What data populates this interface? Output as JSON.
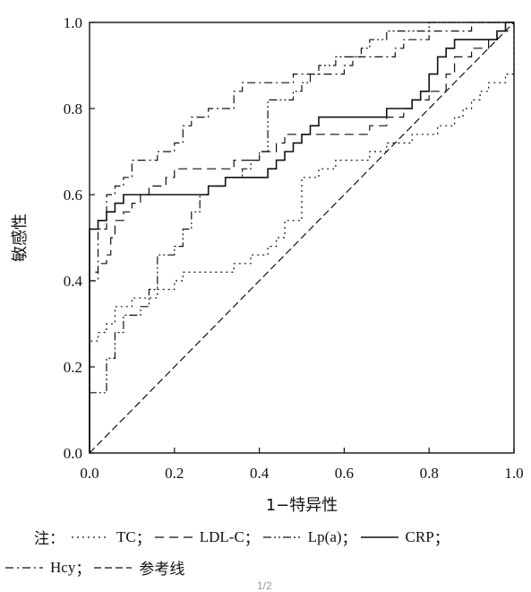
{
  "chart_data": {
    "type": "line",
    "title": "",
    "xlabel": "1−特异性",
    "ylabel": "敏感性",
    "xlim": [
      0,
      1
    ],
    "ylim": [
      0,
      1
    ],
    "x_ticks": [
      "0.0",
      "0.2",
      "0.4",
      "0.6",
      "0.8",
      "1.0"
    ],
    "y_ticks": [
      "0.0",
      "0.2",
      "0.4",
      "0.6",
      "0.8",
      "1.0"
    ],
    "legend_position": "bottom",
    "series": [
      {
        "name": "TC",
        "style": "dotted",
        "points": [
          [
            0,
            0
          ],
          [
            0,
            0.26
          ],
          [
            0.02,
            0.26
          ],
          [
            0.02,
            0.28
          ],
          [
            0.04,
            0.28
          ],
          [
            0.04,
            0.3
          ],
          [
            0.06,
            0.3
          ],
          [
            0.06,
            0.34
          ],
          [
            0.1,
            0.34
          ],
          [
            0.1,
            0.36
          ],
          [
            0.16,
            0.36
          ],
          [
            0.16,
            0.38
          ],
          [
            0.2,
            0.38
          ],
          [
            0.2,
            0.4
          ],
          [
            0.22,
            0.4
          ],
          [
            0.22,
            0.42
          ],
          [
            0.34,
            0.42
          ],
          [
            0.34,
            0.44
          ],
          [
            0.38,
            0.44
          ],
          [
            0.38,
            0.46
          ],
          [
            0.42,
            0.46
          ],
          [
            0.42,
            0.48
          ],
          [
            0.44,
            0.48
          ],
          [
            0.44,
            0.5
          ],
          [
            0.46,
            0.5
          ],
          [
            0.46,
            0.54
          ],
          [
            0.5,
            0.54
          ],
          [
            0.5,
            0.64
          ],
          [
            0.54,
            0.64
          ],
          [
            0.54,
            0.66
          ],
          [
            0.58,
            0.66
          ],
          [
            0.58,
            0.68
          ],
          [
            0.66,
            0.68
          ],
          [
            0.66,
            0.7
          ],
          [
            0.7,
            0.7
          ],
          [
            0.7,
            0.72
          ],
          [
            0.76,
            0.72
          ],
          [
            0.76,
            0.74
          ],
          [
            0.82,
            0.74
          ],
          [
            0.82,
            0.76
          ],
          [
            0.86,
            0.76
          ],
          [
            0.86,
            0.78
          ],
          [
            0.88,
            0.78
          ],
          [
            0.88,
            0.8
          ],
          [
            0.9,
            0.8
          ],
          [
            0.9,
            0.82
          ],
          [
            0.92,
            0.82
          ],
          [
            0.92,
            0.84
          ],
          [
            0.94,
            0.84
          ],
          [
            0.94,
            0.86
          ],
          [
            0.98,
            0.86
          ],
          [
            0.98,
            0.88
          ],
          [
            1,
            0.88
          ],
          [
            1,
            1
          ]
        ]
      },
      {
        "name": "LDL-C",
        "style": "dashed",
        "points": [
          [
            0,
            0
          ],
          [
            0,
            0.42
          ],
          [
            0.02,
            0.42
          ],
          [
            0.02,
            0.44
          ],
          [
            0.04,
            0.44
          ],
          [
            0.04,
            0.46
          ],
          [
            0.05,
            0.46
          ],
          [
            0.05,
            0.5
          ],
          [
            0.06,
            0.5
          ],
          [
            0.06,
            0.54
          ],
          [
            0.08,
            0.54
          ],
          [
            0.08,
            0.56
          ],
          [
            0.1,
            0.56
          ],
          [
            0.1,
            0.58
          ],
          [
            0.12,
            0.58
          ],
          [
            0.12,
            0.6
          ],
          [
            0.14,
            0.6
          ],
          [
            0.14,
            0.62
          ],
          [
            0.18,
            0.62
          ],
          [
            0.18,
            0.64
          ],
          [
            0.2,
            0.64
          ],
          [
            0.2,
            0.66
          ],
          [
            0.34,
            0.66
          ],
          [
            0.34,
            0.68
          ],
          [
            0.4,
            0.68
          ],
          [
            0.4,
            0.7
          ],
          [
            0.44,
            0.7
          ],
          [
            0.44,
            0.72
          ],
          [
            0.46,
            0.72
          ],
          [
            0.46,
            0.74
          ],
          [
            0.66,
            0.74
          ],
          [
            0.66,
            0.76
          ],
          [
            0.7,
            0.76
          ],
          [
            0.7,
            0.78
          ],
          [
            0.74,
            0.78
          ],
          [
            0.74,
            0.8
          ],
          [
            0.76,
            0.8
          ],
          [
            0.76,
            0.82
          ],
          [
            0.8,
            0.82
          ],
          [
            0.8,
            0.84
          ],
          [
            0.84,
            0.84
          ],
          [
            0.84,
            0.88
          ],
          [
            0.86,
            0.88
          ],
          [
            0.86,
            0.92
          ],
          [
            0.9,
            0.92
          ],
          [
            0.9,
            0.94
          ],
          [
            0.94,
            0.94
          ],
          [
            0.94,
            0.96
          ],
          [
            0.96,
            0.96
          ],
          [
            0.96,
            0.98
          ],
          [
            1,
            0.98
          ],
          [
            1,
            1
          ]
        ]
      },
      {
        "name": "Lp(a)",
        "style": "dash-dot-dot",
        "points": [
          [
            0,
            0
          ],
          [
            0,
            0.14
          ],
          [
            0.04,
            0.14
          ],
          [
            0.04,
            0.22
          ],
          [
            0.06,
            0.22
          ],
          [
            0.06,
            0.28
          ],
          [
            0.08,
            0.28
          ],
          [
            0.08,
            0.32
          ],
          [
            0.12,
            0.32
          ],
          [
            0.12,
            0.34
          ],
          [
            0.14,
            0.34
          ],
          [
            0.14,
            0.38
          ],
          [
            0.16,
            0.38
          ],
          [
            0.16,
            0.46
          ],
          [
            0.2,
            0.46
          ],
          [
            0.2,
            0.48
          ],
          [
            0.22,
            0.48
          ],
          [
            0.22,
            0.52
          ],
          [
            0.24,
            0.52
          ],
          [
            0.24,
            0.56
          ],
          [
            0.26,
            0.56
          ],
          [
            0.26,
            0.6
          ],
          [
            0.28,
            0.6
          ],
          [
            0.28,
            0.62
          ],
          [
            0.32,
            0.62
          ],
          [
            0.32,
            0.64
          ],
          [
            0.36,
            0.64
          ],
          [
            0.36,
            0.66
          ],
          [
            0.38,
            0.66
          ],
          [
            0.38,
            0.68
          ],
          [
            0.4,
            0.68
          ],
          [
            0.4,
            0.7
          ],
          [
            0.42,
            0.7
          ],
          [
            0.42,
            0.82
          ],
          [
            0.48,
            0.82
          ],
          [
            0.48,
            0.84
          ],
          [
            0.5,
            0.84
          ],
          [
            0.5,
            0.86
          ],
          [
            0.52,
            0.86
          ],
          [
            0.52,
            0.88
          ],
          [
            0.54,
            0.88
          ],
          [
            0.54,
            0.9
          ],
          [
            0.58,
            0.9
          ],
          [
            0.58,
            0.92
          ],
          [
            0.64,
            0.92
          ],
          [
            0.64,
            0.94
          ],
          [
            0.66,
            0.94
          ],
          [
            0.66,
            0.96
          ],
          [
            0.7,
            0.96
          ],
          [
            0.7,
            0.98
          ],
          [
            0.8,
            0.98
          ],
          [
            0.8,
            1.0
          ],
          [
            1,
            1
          ]
        ]
      },
      {
        "name": "CRP",
        "style": "solid",
        "points": [
          [
            0,
            0
          ],
          [
            0,
            0.52
          ],
          [
            0.02,
            0.52
          ],
          [
            0.02,
            0.54
          ],
          [
            0.04,
            0.54
          ],
          [
            0.04,
            0.56
          ],
          [
            0.06,
            0.56
          ],
          [
            0.06,
            0.58
          ],
          [
            0.08,
            0.58
          ],
          [
            0.08,
            0.6
          ],
          [
            0.28,
            0.6
          ],
          [
            0.28,
            0.62
          ],
          [
            0.32,
            0.62
          ],
          [
            0.32,
            0.64
          ],
          [
            0.42,
            0.64
          ],
          [
            0.42,
            0.66
          ],
          [
            0.44,
            0.66
          ],
          [
            0.44,
            0.68
          ],
          [
            0.46,
            0.68
          ],
          [
            0.46,
            0.7
          ],
          [
            0.48,
            0.7
          ],
          [
            0.48,
            0.72
          ],
          [
            0.5,
            0.72
          ],
          [
            0.5,
            0.74
          ],
          [
            0.52,
            0.74
          ],
          [
            0.52,
            0.76
          ],
          [
            0.54,
            0.76
          ],
          [
            0.54,
            0.78
          ],
          [
            0.7,
            0.78
          ],
          [
            0.7,
            0.8
          ],
          [
            0.76,
            0.8
          ],
          [
            0.76,
            0.82
          ],
          [
            0.78,
            0.82
          ],
          [
            0.78,
            0.84
          ],
          [
            0.8,
            0.84
          ],
          [
            0.8,
            0.88
          ],
          [
            0.82,
            0.88
          ],
          [
            0.82,
            0.92
          ],
          [
            0.84,
            0.92
          ],
          [
            0.84,
            0.94
          ],
          [
            0.86,
            0.94
          ],
          [
            0.86,
            0.96
          ],
          [
            0.96,
            0.96
          ],
          [
            0.96,
            0.98
          ],
          [
            0.98,
            0.98
          ],
          [
            0.98,
            1.0
          ],
          [
            1,
            1
          ]
        ]
      },
      {
        "name": "Hcy",
        "style": "dash-dot",
        "points": [
          [
            0,
            0
          ],
          [
            0,
            0.4
          ],
          [
            0.02,
            0.4
          ],
          [
            0.02,
            0.52
          ],
          [
            0.04,
            0.52
          ],
          [
            0.04,
            0.6
          ],
          [
            0.06,
            0.6
          ],
          [
            0.06,
            0.62
          ],
          [
            0.08,
            0.62
          ],
          [
            0.08,
            0.64
          ],
          [
            0.1,
            0.64
          ],
          [
            0.1,
            0.68
          ],
          [
            0.16,
            0.68
          ],
          [
            0.16,
            0.7
          ],
          [
            0.2,
            0.7
          ],
          [
            0.2,
            0.72
          ],
          [
            0.22,
            0.72
          ],
          [
            0.22,
            0.76
          ],
          [
            0.24,
            0.76
          ],
          [
            0.24,
            0.78
          ],
          [
            0.28,
            0.78
          ],
          [
            0.28,
            0.8
          ],
          [
            0.34,
            0.8
          ],
          [
            0.34,
            0.84
          ],
          [
            0.36,
            0.84
          ],
          [
            0.36,
            0.86
          ],
          [
            0.48,
            0.86
          ],
          [
            0.48,
            0.88
          ],
          [
            0.6,
            0.88
          ],
          [
            0.6,
            0.9
          ],
          [
            0.62,
            0.9
          ],
          [
            0.62,
            0.92
          ],
          [
            0.72,
            0.92
          ],
          [
            0.72,
            0.94
          ],
          [
            0.74,
            0.94
          ],
          [
            0.74,
            0.96
          ],
          [
            0.8,
            0.96
          ],
          [
            0.8,
            0.98
          ],
          [
            0.9,
            0.98
          ],
          [
            0.9,
            1.0
          ],
          [
            1,
            1
          ]
        ]
      },
      {
        "name": "参考线",
        "style": "long-dash",
        "points": [
          [
            0,
            0
          ],
          [
            1,
            1
          ]
        ]
      }
    ]
  },
  "legend": {
    "note_label": "注：",
    "separator": "；",
    "row1": [
      "TC",
      "LDL-C",
      "Lp(a)",
      "CRP"
    ],
    "row2": [
      "Hcy",
      "参考线"
    ]
  },
  "page_label": "1/2"
}
